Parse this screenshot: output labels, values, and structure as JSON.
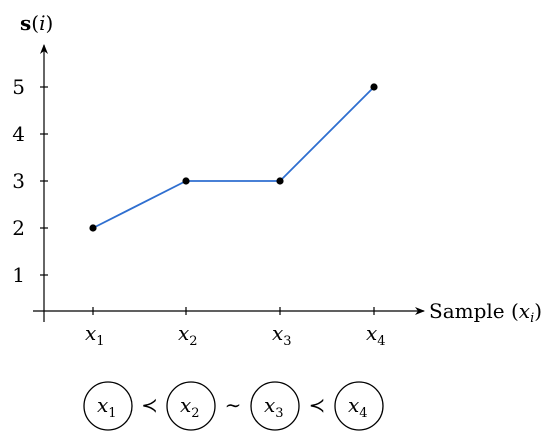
{
  "chart_data": {
    "type": "line",
    "ylabel_bold": "s",
    "ylabel_rest": "(i)",
    "xlabel_text": "Sample (",
    "xlabel_var": "x",
    "xlabel_sub": "i",
    "xlabel_close": ")",
    "categories": [
      {
        "var": "x",
        "sub": "1"
      },
      {
        "var": "x",
        "sub": "2"
      },
      {
        "var": "x",
        "sub": "3"
      },
      {
        "var": "x",
        "sub": "4"
      }
    ],
    "y_ticks": [
      "1",
      "2",
      "3",
      "4",
      "5"
    ],
    "ylim": [
      0,
      5.6
    ],
    "series": [
      {
        "values": [
          2,
          3,
          3,
          5
        ],
        "color": "#2f6fd0"
      }
    ],
    "marker_color": "#000000"
  },
  "ordering": {
    "nodes": [
      {
        "var": "x",
        "sub": "1"
      },
      {
        "var": "x",
        "sub": "2"
      },
      {
        "var": "x",
        "sub": "3"
      },
      {
        "var": "x",
        "sub": "4"
      }
    ],
    "relations": [
      "≺",
      "∼",
      "≺"
    ]
  }
}
